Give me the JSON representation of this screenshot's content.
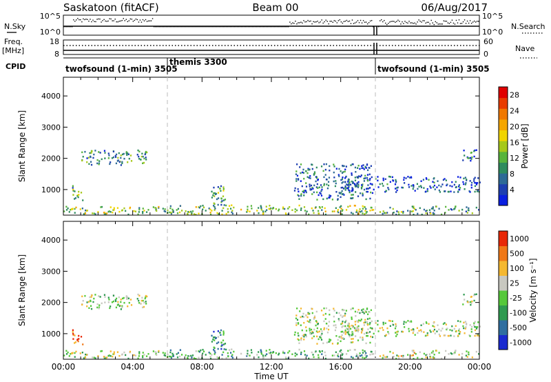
{
  "header": {
    "station": "Saskatoon (fitACF)",
    "beam": "Beam 00",
    "date": "06/Aug/2017"
  },
  "panels": {
    "nsky_label": "N.Sky",
    "nsearch_label": "N.Search",
    "freq_label_top": "Freq.",
    "freq_label_unit": "[MHz]",
    "nave_label": "Nave",
    "cpid_label": "CPID",
    "nsky_ticks": [
      "10^5",
      "10^0"
    ],
    "nsearch_ticks": [
      "10^5",
      "10^0"
    ],
    "freq_ticks": [
      "18",
      "8"
    ],
    "nave_ticks": [
      "60",
      "0"
    ]
  },
  "cpid_segments": [
    {
      "label": "twofsound (1-min) 3505",
      "start_h": 0.0
    },
    {
      "label": "themis 3300",
      "start_h": 6.0
    },
    {
      "label": "twofsound (1-min) 3505",
      "start_h": 18.0
    }
  ],
  "chart_data": [
    {
      "type": "heatmap",
      "name": "power",
      "xlabel": "",
      "ylabel": "Slant Range [km]",
      "xlim": [
        0,
        24
      ],
      "ylim": [
        180,
        4600
      ],
      "yticks": [
        1000,
        2000,
        3000,
        4000
      ],
      "colorbar": {
        "label": "Power [dB]",
        "ticks": [
          "4",
          "8",
          "12",
          "16",
          "20",
          "24",
          "28"
        ],
        "colors": [
          "#0a1fe0",
          "#1e3fb0",
          "#2e6a96",
          "#2f8c5e",
          "#58b43c",
          "#a6c81a",
          "#f0d400",
          "#f5a600",
          "#f07800",
          "#e83c00",
          "#e00000"
        ],
        "range": [
          0,
          30
        ]
      },
      "echo_regions": [
        {
          "t0": 0.0,
          "t1": 6.0,
          "r0": 180,
          "r1": 450,
          "level": 0.45
        },
        {
          "t0": 0.5,
          "t1": 1.1,
          "r0": 600,
          "r1": 1100,
          "level": 0.4
        },
        {
          "t0": 1.0,
          "t1": 4.8,
          "r0": 1750,
          "r1": 2250,
          "level": 0.3
        },
        {
          "t0": 6.0,
          "t1": 18.0,
          "r0": 180,
          "r1": 480,
          "level": 0.45
        },
        {
          "t0": 8.5,
          "t1": 9.3,
          "r0": 300,
          "r1": 1100,
          "level": 0.35
        },
        {
          "t0": 13.3,
          "t1": 17.8,
          "r0": 650,
          "r1": 1800,
          "level": 0.2
        },
        {
          "t0": 16.0,
          "t1": 24.0,
          "r0": 900,
          "r1": 1400,
          "level": 0.15
        },
        {
          "t0": 18.0,
          "t1": 24.0,
          "r0": 180,
          "r1": 450,
          "level": 0.35
        },
        {
          "t0": 23.0,
          "t1": 24.0,
          "r0": 1900,
          "r1": 2250,
          "level": 0.2
        }
      ]
    },
    {
      "type": "heatmap",
      "name": "velocity",
      "xlabel": "Time UT",
      "ylabel": "Slant Range [km]",
      "xlim": [
        0,
        24
      ],
      "ylim": [
        180,
        4600
      ],
      "yticks": [
        1000,
        2000,
        3000,
        4000
      ],
      "xticks": [
        "00:00",
        "04:00",
        "08:00",
        "12:00",
        "16:00",
        "20:00",
        "00:00"
      ],
      "colorbar": {
        "label": "Velocity [m s⁻¹]",
        "ticks": [
          "1000",
          "500",
          "100",
          "25",
          "-25",
          "-100",
          "-500",
          "-1000"
        ],
        "colors": [
          "#1a2ad0",
          "#2f6ea0",
          "#2f9a50",
          "#55c83a",
          "#c8c8c0",
          "#f5b830",
          "#f07818",
          "#e82808"
        ]
      },
      "echo_regions": [
        {
          "t0": 0.0,
          "t1": 6.0,
          "r0": 180,
          "r1": 450,
          "level": 0.5
        },
        {
          "t0": 0.5,
          "t1": 1.1,
          "r0": 600,
          "r1": 1100,
          "level": 0.85
        },
        {
          "t0": 1.0,
          "t1": 4.8,
          "r0": 1750,
          "r1": 2250,
          "level": 0.5
        },
        {
          "t0": 6.0,
          "t1": 18.0,
          "r0": 180,
          "r1": 480,
          "level": 0.4
        },
        {
          "t0": 8.5,
          "t1": 9.3,
          "r0": 300,
          "r1": 1100,
          "level": 0.3
        },
        {
          "t0": 13.3,
          "t1": 17.8,
          "r0": 650,
          "r1": 1800,
          "level": 0.5
        },
        {
          "t0": 16.0,
          "t1": 24.0,
          "r0": 900,
          "r1": 1400,
          "level": 0.5
        },
        {
          "t0": 18.0,
          "t1": 24.0,
          "r0": 180,
          "r1": 450,
          "level": 0.55
        },
        {
          "t0": 23.0,
          "t1": 24.0,
          "r0": 1900,
          "r1": 2250,
          "level": 0.5
        }
      ]
    }
  ],
  "colors": {
    "axis": "#000000",
    "dashed_marker": "#bbbbbb"
  }
}
